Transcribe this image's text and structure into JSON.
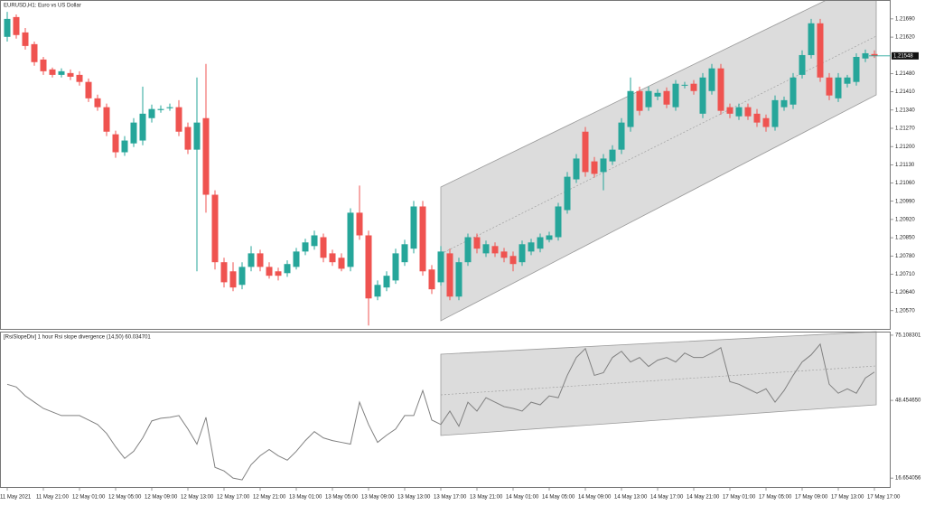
{
  "chart_data": [
    {
      "type": "candlestick",
      "title": "EURUSD,H1:  Euro vs US Dollar",
      "categories": [
        "11 May 2021",
        null,
        null,
        null,
        "11 May 21:00",
        null,
        null,
        null,
        "12 May 01:00",
        null,
        null,
        null,
        "12 May 05:00",
        null,
        null,
        null,
        "12 May 09:00",
        null,
        null,
        null,
        "12 May 13:00",
        null,
        null,
        null,
        "12 May 17:00",
        null,
        null,
        null,
        "12 May 21:00",
        null,
        null,
        null,
        "13 May 01:00",
        null,
        null,
        null,
        "13 May 05:00",
        null,
        null,
        null,
        "13 May 09:00",
        null,
        null,
        null,
        "13 May 13:00",
        null,
        null,
        null,
        "13 May 17:00",
        null,
        null,
        null,
        "13 May 21:00",
        null,
        null,
        null,
        "14 May 01:00",
        null,
        null,
        null,
        "14 May 05:00",
        null,
        null,
        null,
        "14 May 09:00",
        null,
        null,
        null,
        "14 May 13:00",
        null,
        null,
        null,
        "14 May 17:00",
        null,
        null,
        null,
        "14 May 21:00",
        null,
        null,
        null,
        "17 May 01:00",
        null,
        null,
        null,
        "17 May 05:00",
        null,
        null,
        null,
        "17 May 09:00",
        null,
        null,
        null,
        "17 May 13:00",
        null,
        null,
        null,
        "17 May 17:00"
      ],
      "open": [
        1.21621,
        1.21697,
        1.21638,
        1.21593,
        1.21534,
        1.21496,
        1.21475,
        1.21482,
        1.21475,
        1.21448,
        1.21385,
        1.21351,
        1.21247,
        1.21178,
        1.21212,
        1.21223,
        1.21309,
        1.2134,
        1.21347,
        1.21351,
        1.21275,
        1.21188,
        1.21309,
        1.21015,
        1.20756,
        1.20721,
        1.20669,
        1.20738,
        1.2079,
        1.20738,
        1.20721,
        1.20714,
        1.20738,
        1.20797,
        1.20818,
        1.20852,
        1.2079,
        1.20773,
        1.20738,
        1.20946,
        1.20859,
        1.20624,
        1.20659,
        1.20686,
        1.20756,
        1.20808,
        1.2097,
        1.20728,
        1.20679,
        1.2079,
        1.20624,
        1.20756,
        1.20852,
        1.2079,
        1.20818,
        1.20797,
        1.2078,
        1.20756,
        1.20797,
        1.20808,
        1.20842,
        1.20852,
        1.20956,
        1.21074,
        1.21257,
        1.21143,
        1.21102,
        1.21143,
        1.21188,
        1.21275,
        1.21413,
        1.21351,
        1.21392,
        1.21413,
        1.21351,
        1.21434,
        1.21441,
        1.21326,
        1.21413,
        1.215,
        1.21351,
        1.21316,
        1.21351,
        1.21326,
        1.21309,
        1.21275,
        1.21351,
        1.21361,
        1.21475,
        1.21551,
        1.21673,
        1.21465,
        1.21385,
        1.21441,
        1.21448,
        1.21538,
        1.21555
      ],
      "high": [
        1.21717,
        1.21707,
        1.21655,
        1.21603,
        1.21544,
        1.21503,
        1.215,
        1.21496,
        1.21489,
        1.21461,
        1.21399,
        1.21365,
        1.21261,
        1.2124,
        1.21309,
        1.2143,
        1.21361,
        1.21358,
        1.21365,
        1.21378,
        1.21292,
        1.21465,
        1.21517,
        1.21032,
        1.20773,
        1.20756,
        1.20756,
        1.20818,
        1.20804,
        1.20756,
        1.20735,
        1.20763,
        1.20811,
        1.20846,
        1.20877,
        1.20866,
        1.20804,
        1.2079,
        1.20963,
        1.2105,
        1.20877,
        1.20686,
        1.20721,
        1.20808,
        1.20842,
        1.20991,
        1.20991,
        1.20745,
        1.20818,
        1.20808,
        1.20773,
        1.20866,
        1.20866,
        1.20839,
        1.20832,
        1.20811,
        1.20797,
        1.20839,
        1.20846,
        1.20866,
        1.20873,
        1.20984,
        1.21102,
        1.21171,
        1.21275,
        1.2116,
        1.21171,
        1.21205,
        1.21309,
        1.21465,
        1.2143,
        1.2143,
        1.2142,
        1.21427,
        1.21455,
        1.21448,
        1.21455,
        1.21482,
        1.21517,
        1.21517,
        1.21365,
        1.21365,
        1.21365,
        1.21344,
        1.21323,
        1.21396,
        1.21392,
        1.21482,
        1.21569,
        1.2169,
        1.2169,
        1.21482,
        1.21482,
        1.21475,
        1.21558,
        1.21572,
        1.21569
      ],
      "low": [
        1.21603,
        1.21614,
        1.21572,
        1.2151,
        1.21475,
        1.21465,
        1.21465,
        1.21455,
        1.21434,
        1.21371,
        1.21337,
        1.2124,
        1.21157,
        1.21164,
        1.21198,
        1.21205,
        1.21292,
        1.2133,
        1.21337,
        1.2124,
        1.21171,
        1.20721,
        1.20946,
        1.20728,
        1.20659,
        1.20645,
        1.20652,
        1.20721,
        1.20721,
        1.20693,
        1.20686,
        1.207,
        1.20728,
        1.20783,
        1.20804,
        1.20756,
        1.20742,
        1.20721,
        1.20721,
        1.20842,
        1.20513,
        1.2061,
        1.20645,
        1.20673,
        1.20742,
        1.2079,
        1.20704,
        1.20634,
        1.20666,
        1.2061,
        1.2061,
        1.20742,
        1.2079,
        1.20776,
        1.20776,
        1.20756,
        1.20721,
        1.20742,
        1.20783,
        1.20794,
        1.20832,
        1.20839,
        1.20942,
        1.2106,
        1.21084,
        1.21081,
        1.21032,
        1.21129,
        1.21171,
        1.21257,
        1.2132,
        1.21337,
        1.21378,
        1.21347,
        1.21337,
        1.21423,
        1.21399,
        1.21309,
        1.21399,
        1.21323,
        1.21309,
        1.21302,
        1.21302,
        1.21275,
        1.21257,
        1.21261,
        1.21337,
        1.21344,
        1.21461,
        1.21538,
        1.21448,
        1.21378,
        1.21371,
        1.21427,
        1.21434,
        1.21524,
        1.2154
      ],
      "close": [
        1.2169,
        1.21628,
        1.21586,
        1.21524,
        1.21489,
        1.21475,
        1.21489,
        1.21468,
        1.21448,
        1.21385,
        1.21351,
        1.21257,
        1.21178,
        1.21223,
        1.21292,
        1.21326,
        1.21344,
        1.21344,
        1.21351,
        1.21257,
        1.21188,
        1.21292,
        1.21015,
        1.20756,
        1.20679,
        1.20659,
        1.20738,
        1.2079,
        1.20738,
        1.20704,
        1.20704,
        1.20749,
        1.20797,
        1.20832,
        1.20859,
        1.20773,
        1.20756,
        1.20731,
        1.20946,
        1.20859,
        1.20617,
        1.20669,
        1.20704,
        1.2079,
        1.20825,
        1.2097,
        1.20721,
        1.20652,
        1.20797,
        1.20624,
        1.20756,
        1.20852,
        1.20808,
        1.20825,
        1.2079,
        1.20773,
        1.20749,
        1.20825,
        1.20832,
        1.20852,
        1.20859,
        1.2097,
        1.21084,
        1.21154,
        1.21102,
        1.21095,
        1.21154,
        1.21188,
        1.21292,
        1.21413,
        1.21337,
        1.21413,
        1.21406,
        1.21361,
        1.21441,
        1.21437,
        1.21413,
        1.21465,
        1.215,
        1.21337,
        1.21326,
        1.21351,
        1.21316,
        1.21292,
        1.21275,
        1.21378,
        1.21378,
        1.21465,
        1.21551,
        1.21673,
        1.21465,
        1.21396,
        1.21465,
        1.21465,
        1.21544,
        1.21558,
        1.21548
      ],
      "up_color": "#26a69a",
      "down_color": "#ef5350",
      "ylim": [
        1.205,
        1.21759
      ],
      "yticks": [
        {
          "value": 1.2169,
          "label": "1.21690"
        },
        {
          "value": 1.2162,
          "label": "1.21620"
        },
        {
          "value": 1.2148,
          "label": "1.21480"
        },
        {
          "value": 1.2141,
          "label": "1.21410"
        },
        {
          "value": 1.2134,
          "label": "1.21340"
        },
        {
          "value": 1.2127,
          "label": "1.21270"
        },
        {
          "value": 1.212,
          "label": "1.21200"
        },
        {
          "value": 1.2113,
          "label": "1.21130"
        },
        {
          "value": 1.2106,
          "label": "1.21060"
        },
        {
          "value": 1.2099,
          "label": "1.20990"
        },
        {
          "value": 1.2092,
          "label": "1.20920"
        },
        {
          "value": 1.2085,
          "label": "1.20850"
        },
        {
          "value": 1.2078,
          "label": "1.20780"
        },
        {
          "value": 1.2071,
          "label": "1.20710"
        },
        {
          "value": 1.2064,
          "label": "1.20640"
        },
        {
          "value": 1.2057,
          "label": "1.20570"
        }
      ],
      "last_price": {
        "value": 1.21548,
        "label": "1.21548"
      }
    },
    {
      "type": "line",
      "title": "[RsiSlopeDiv] 1 hour Rsi slope divergence (14,50) 60.034701",
      "values": [
        55.02,
        53.92,
        50.27,
        47.71,
        45.16,
        43.69,
        42.23,
        42.23,
        42.23,
        40.41,
        38.58,
        34.93,
        29.45,
        24.7,
        27.62,
        33.1,
        40.04,
        41.14,
        41.5,
        42.23,
        36.75,
        30.54,
        41.5,
        21.05,
        19.58,
        16.66,
        15.93,
        22.14,
        25.79,
        28.35,
        25.79,
        23.97,
        27.62,
        32,
        35.66,
        33.1,
        32,
        31.27,
        30.54,
        47.71,
        38.58,
        31.27,
        34.2,
        36.75,
        42.23,
        42.23,
        52.46,
        40.41,
        38.58,
        44.06,
        37.85,
        47.71,
        44.06,
        49.54,
        47.71,
        45.89,
        45.16,
        44.06,
        47.71,
        46.62,
        50.27,
        49.54,
        58.67,
        65.98,
        69.63,
        58.67,
        59.77,
        65.98,
        68.53,
        64.15,
        65.98,
        62.32,
        64.88,
        65.98,
        64.15,
        67.8,
        65.98,
        65.98,
        67.8,
        70,
        56.11,
        55.02,
        53.19,
        51.37,
        53.19,
        47.71,
        52.46,
        58.67,
        64.15,
        67.07,
        71.46,
        55.02,
        51.37,
        53.19,
        51.37,
        57.58,
        60.03
      ],
      "color": "#808080",
      "ylim": [
        13.0,
        76.2
      ],
      "yticks": [
        75.108301,
        {
          "value": 48.45465,
          "label": "48.454650"
        },
        16.654056
      ]
    }
  ]
}
